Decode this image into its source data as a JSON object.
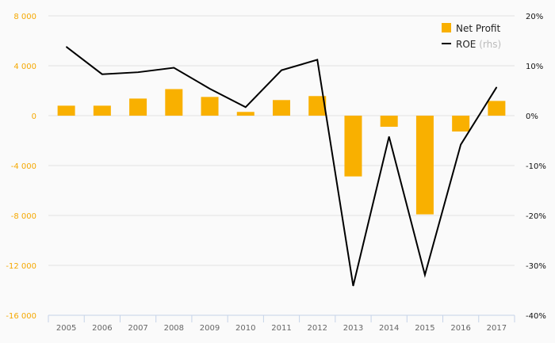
{
  "chart_data": {
    "type": "bar+line",
    "categories": [
      "2005",
      "2006",
      "2007",
      "2008",
      "2009",
      "2010",
      "2011",
      "2012",
      "2013",
      "2014",
      "2015",
      "2016",
      "2017"
    ],
    "series": [
      {
        "name": "Net Profit",
        "axis": "left",
        "type": "bar",
        "color": "#f9b000",
        "values": [
          800,
          800,
          1370,
          2130,
          1500,
          300,
          1250,
          1570,
          -4870,
          -890,
          -7910,
          -1270,
          1180
        ]
      },
      {
        "name": "ROE",
        "axis": "right",
        "type": "line",
        "color": "#000000",
        "values": [
          13.8,
          8.3,
          8.7,
          9.6,
          5.4,
          1.7,
          9.1,
          11.2,
          -34.1,
          -4.2,
          -31.9,
          -5.8,
          5.7
        ]
      }
    ],
    "legend": {
      "net_profit": "Net Profit",
      "roe": "ROE",
      "roe_suffix": "(rhs)",
      "placement": "top-right"
    },
    "ylim_left": [
      -16000,
      8000
    ],
    "ylim_right": [
      -40,
      20
    ],
    "left_ticks": [
      "-16 000",
      "-12 000",
      "-8 000",
      "-4 000",
      "0",
      "4 000",
      "8 000"
    ],
    "right_ticks": [
      "-40%",
      "-30%",
      "-20%",
      "-10%",
      "0%",
      "10%",
      "20%"
    ],
    "grid": true
  }
}
